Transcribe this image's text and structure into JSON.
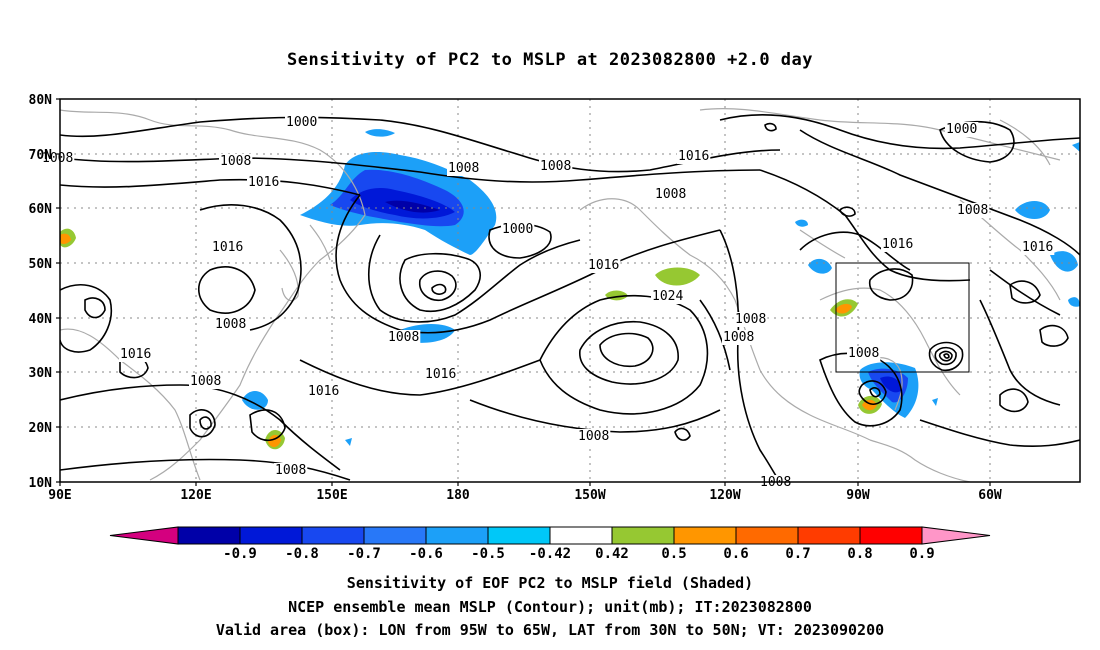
{
  "title": "Sensitivity of PC2 to MSLP at 2023082800 +2.0 day",
  "lat_labels": [
    "80N",
    "70N",
    "60N",
    "50N",
    "40N",
    "30N",
    "20N",
    "10N"
  ],
  "lon_labels": [
    "90E",
    "120E",
    "150E",
    "180",
    "150W",
    "120W",
    "90W",
    "60W"
  ],
  "contour_labels": [
    {
      "text": "1000",
      "id": "c1"
    },
    {
      "text": "1008",
      "id": "c2"
    },
    {
      "text": "1008",
      "id": "c3"
    },
    {
      "text": "1016",
      "id": "c4"
    },
    {
      "text": "1008",
      "id": "c5"
    },
    {
      "text": "1008",
      "id": "c6"
    },
    {
      "text": "1016",
      "id": "c7"
    },
    {
      "text": "1008",
      "id": "c8"
    },
    {
      "text": "1016",
      "id": "c9"
    },
    {
      "text": "1000",
      "id": "c10"
    },
    {
      "text": "1016",
      "id": "c11"
    },
    {
      "text": "1024",
      "id": "c12"
    },
    {
      "text": "1008",
      "id": "c13"
    },
    {
      "text": "1008",
      "id": "c14"
    },
    {
      "text": "1016",
      "id": "c15"
    },
    {
      "text": "1016",
      "id": "c16"
    },
    {
      "text": "1008",
      "id": "c17"
    },
    {
      "text": "1016",
      "id": "c18"
    },
    {
      "text": "1008",
      "id": "c19"
    },
    {
      "text": "1008",
      "id": "c20"
    },
    {
      "text": "1000",
      "id": "c21"
    },
    {
      "text": "1008",
      "id": "c22"
    },
    {
      "text": "1016",
      "id": "c23"
    },
    {
      "text": "1016",
      "id": "c24"
    },
    {
      "text": "1008",
      "id": "c25"
    },
    {
      "text": "1008",
      "id": "c26"
    },
    {
      "text": "1016",
      "id": "c27"
    },
    {
      "text": "1008",
      "id": "c28"
    },
    {
      "text": "1016",
      "id": "c29"
    },
    {
      "text": "1008",
      "id": "c30"
    },
    {
      "text": "1008",
      "id": "c31"
    },
    {
      "text": "1008",
      "id": "c32"
    }
  ],
  "colorbar": {
    "colors": [
      "#d4007f",
      "#0000a8",
      "#0018d8",
      "#1848f0",
      "#2878f8",
      "#1ca0f8",
      "#00c8f8",
      "#ffffff",
      "#96c832",
      "#ff9600",
      "#ff6a00",
      "#ff3c00",
      "#ff0000",
      "#ff96c8"
    ],
    "labels": [
      "-0.9",
      "-0.8",
      "-0.7",
      "-0.6",
      "-0.5",
      "-0.42",
      "0.42",
      "0.5",
      "0.6",
      "0.7",
      "0.8",
      "0.9"
    ]
  },
  "captions": [
    "Sensitivity of EOF PC2 to MSLP field (Shaded)",
    "NCEP ensemble mean MSLP (Contour); unit(mb); IT:2023082800",
    "Valid area (box): LON from 95W to 65W, LAT from 30N to 50N; VT: 2023090200"
  ]
}
